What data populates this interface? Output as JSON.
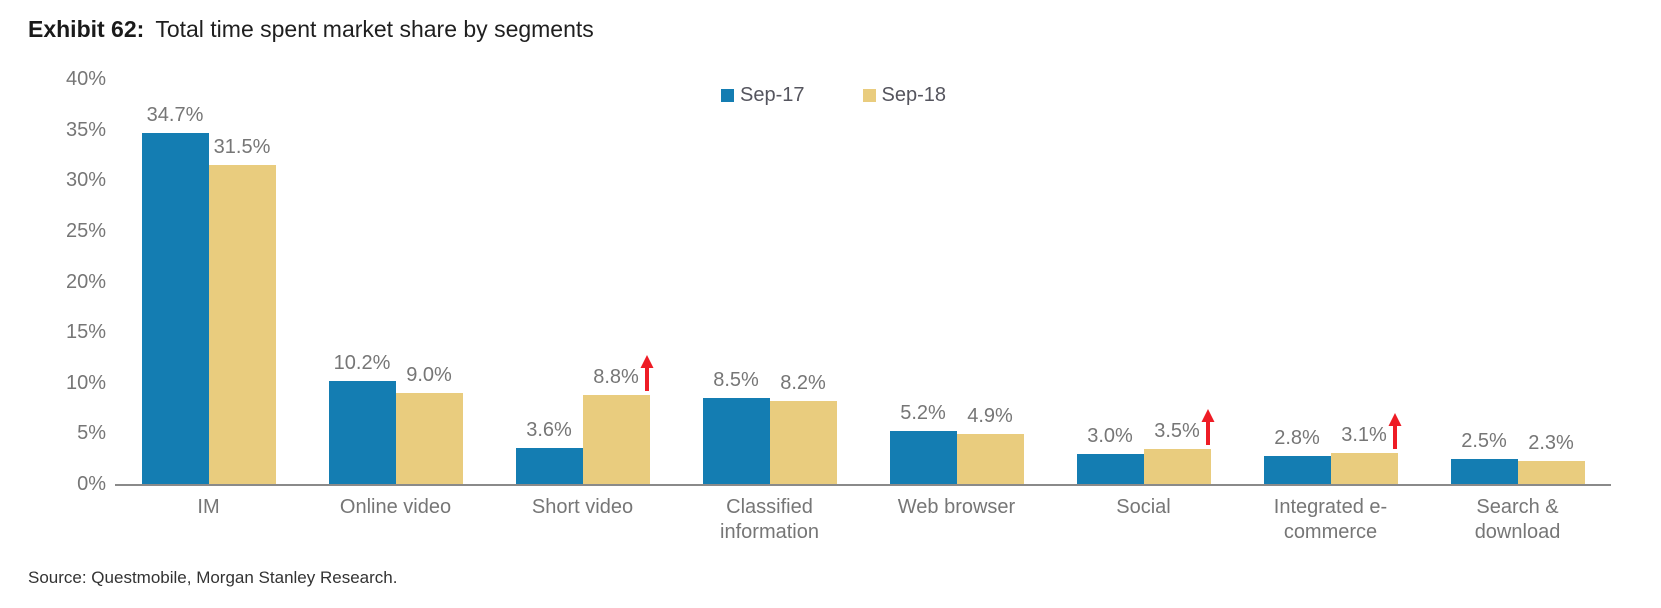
{
  "header": {
    "exhibit_label": "Exhibit 62:",
    "title": "Total time spent market share by segments"
  },
  "footer": {
    "source": "Source: Questmobile, Morgan Stanley Research."
  },
  "chart_data": {
    "type": "bar",
    "title": "Exhibit 62: Total time spent market share by segments",
    "categories": [
      "IM",
      "Online video",
      "Short video",
      "Classified information",
      "Web browser",
      "Social",
      "Integrated e-commerce",
      "Search & download"
    ],
    "category_label_lines": [
      [
        "IM"
      ],
      [
        "Online video"
      ],
      [
        "Short video"
      ],
      [
        "Classified",
        "information"
      ],
      [
        "Web browser"
      ],
      [
        "Social"
      ],
      [
        "Integrated e-",
        "commerce"
      ],
      [
        "Search &",
        "download"
      ]
    ],
    "series": [
      {
        "name": "Sep-17",
        "color": "#147DB2",
        "values": [
          34.7,
          10.2,
          3.6,
          8.5,
          5.2,
          3.0,
          2.8,
          2.5
        ]
      },
      {
        "name": "Sep-18",
        "color": "#E9CC7E",
        "values": [
          31.5,
          9.0,
          8.8,
          8.2,
          4.9,
          3.5,
          3.1,
          2.3
        ]
      }
    ],
    "data_labels": {
      "Sep-17": [
        "34.7%",
        "10.2%",
        "3.6%",
        "8.5%",
        "5.2%",
        "3.0%",
        "2.8%",
        "2.5%"
      ],
      "Sep-18": [
        "31.5%",
        "9.0%",
        "8.8%",
        "8.2%",
        "4.9%",
        "3.5%",
        "3.1%",
        "2.3%"
      ]
    },
    "increase_arrow_on_sep18": [
      false,
      false,
      true,
      false,
      false,
      true,
      true,
      false
    ],
    "arrow_color": "#EE1C25",
    "xlabel": "",
    "ylabel": "",
    "ylim": [
      0,
      40
    ],
    "ytick_step": 5,
    "ytick_labels": [
      "0%",
      "5%",
      "10%",
      "15%",
      "20%",
      "25%",
      "30%",
      "35%",
      "40%"
    ],
    "grid": false,
    "legend_position": "top-center",
    "label_color": "#767676",
    "axis_line_color": "#8A8A8A"
  }
}
